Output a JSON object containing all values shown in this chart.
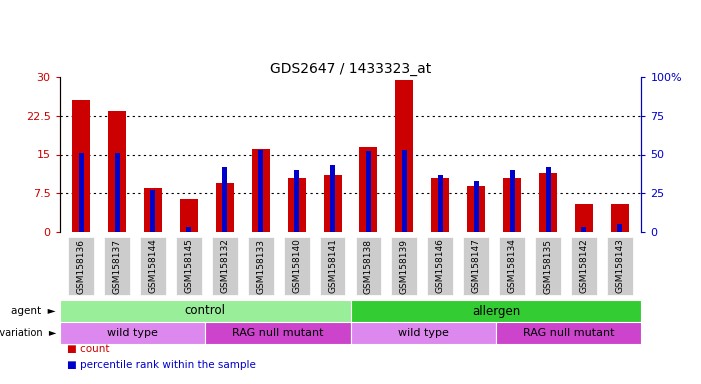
{
  "title": "GDS2647 / 1433323_at",
  "samples": [
    "GSM158136",
    "GSM158137",
    "GSM158144",
    "GSM158145",
    "GSM158132",
    "GSM158133",
    "GSM158140",
    "GSM158141",
    "GSM158138",
    "GSM158139",
    "GSM158146",
    "GSM158147",
    "GSM158134",
    "GSM158135",
    "GSM158142",
    "GSM158143"
  ],
  "count_values": [
    25.5,
    23.5,
    8.5,
    6.3,
    9.5,
    16.0,
    10.5,
    11.0,
    16.5,
    29.5,
    10.5,
    9.0,
    10.5,
    11.5,
    5.5,
    5.5
  ],
  "percentile_values": [
    51,
    51,
    27,
    3,
    42,
    53,
    40,
    43,
    52,
    53,
    37,
    33,
    40,
    42,
    3,
    5
  ],
  "ylim_left": [
    0,
    30
  ],
  "ylim_right": [
    0,
    100
  ],
  "yticks_left": [
    0,
    7.5,
    15,
    22.5,
    30
  ],
  "yticks_right": [
    0,
    25,
    50,
    75,
    100
  ],
  "count_color": "#cc0000",
  "percentile_color": "#0000cc",
  "agent_row": {
    "groups": [
      {
        "text": "control",
        "start": 0,
        "end": 8,
        "color": "#99ee99"
      },
      {
        "text": "allergen",
        "start": 8,
        "end": 16,
        "color": "#33cc33"
      }
    ]
  },
  "genotype_row": {
    "groups": [
      {
        "text": "wild type",
        "start": 0,
        "end": 4,
        "color": "#dd88ee"
      },
      {
        "text": "RAG null mutant",
        "start": 4,
        "end": 8,
        "color": "#cc44cc"
      },
      {
        "text": "wild type",
        "start": 8,
        "end": 12,
        "color": "#dd88ee"
      },
      {
        "text": "RAG null mutant",
        "start": 12,
        "end": 16,
        "color": "#cc44cc"
      }
    ]
  },
  "legend": [
    {
      "label": "count",
      "color": "#cc0000"
    },
    {
      "label": "percentile rank within the sample",
      "color": "#0000cc"
    }
  ]
}
